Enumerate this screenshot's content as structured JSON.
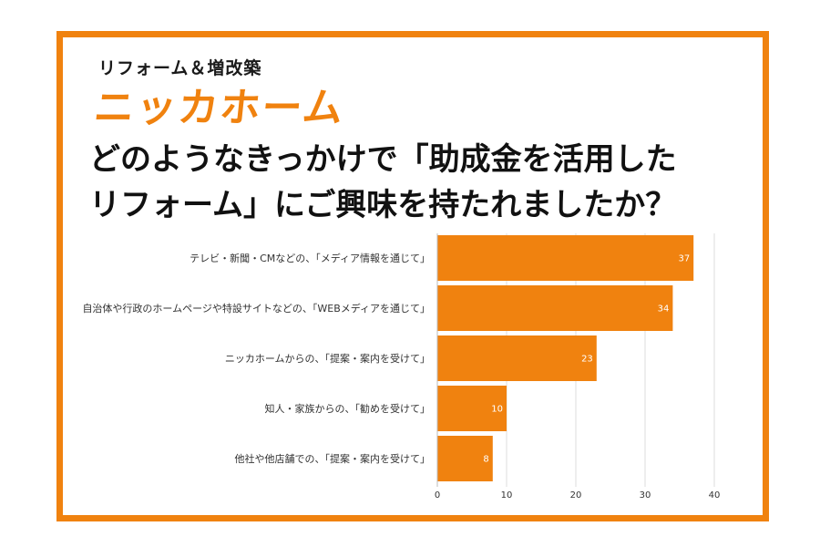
{
  "logo": {
    "tagline": "リフォーム＆増改築",
    "brand": "ニッカホーム"
  },
  "title_line1": "どのようなきっかけで「助成金を活用した",
  "title_line2": "リフォーム」にご興味を持たれましたか？",
  "colors": {
    "accent": "#f0820f",
    "grid": "#dddddd"
  },
  "chart_data": {
    "type": "bar",
    "orientation": "horizontal",
    "categories": [
      "テレビ・新聞・CMなどの、「メディア情報を通じて」",
      "自治体や行政のホームページや特設サイトなどの、「WEBメディアを通じて」",
      "ニッカホームからの、「提案・案内を受けて」",
      "知人・家族からの、「勧めを受けて」",
      "他社や他店舗での、「提案・案内を受けて」"
    ],
    "values": [
      37,
      34,
      23,
      10,
      8
    ],
    "xlim": [
      0,
      40
    ],
    "xticks": [
      0,
      10,
      20,
      30,
      40
    ],
    "grid": true,
    "title": "",
    "xlabel": "",
    "ylabel": ""
  }
}
